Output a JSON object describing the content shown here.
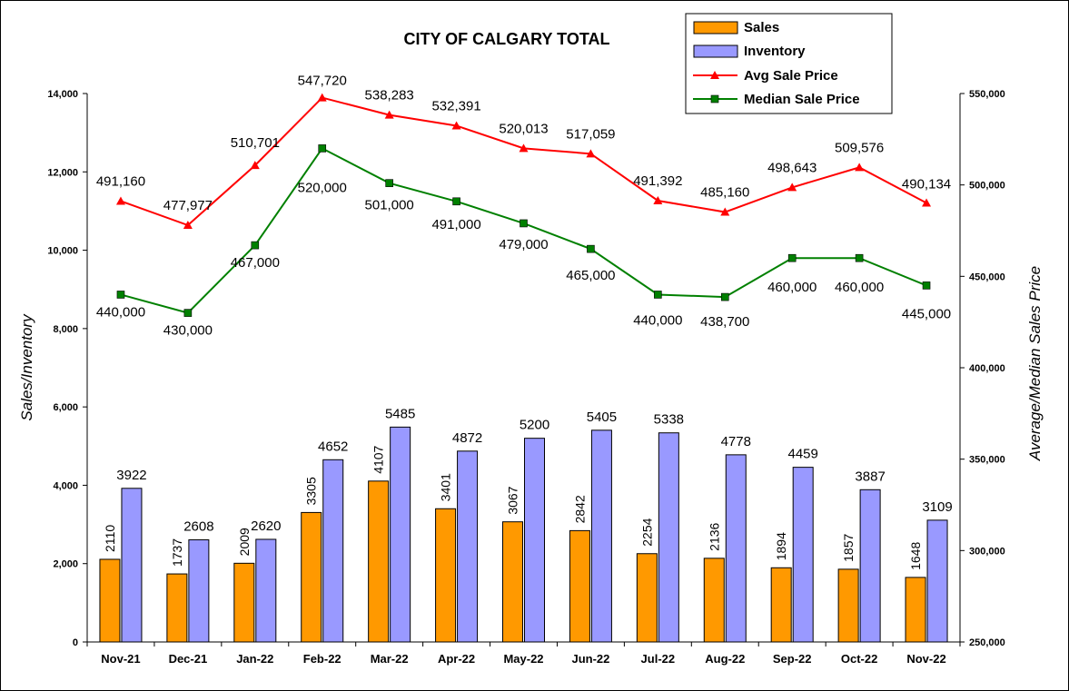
{
  "chart_data": {
    "type": "bar",
    "title": "CITY OF CALGARY TOTAL",
    "categories": [
      "Nov-21",
      "Dec-21",
      "Jan-22",
      "Feb-22",
      "Mar-22",
      "Apr-22",
      "May-22",
      "Jun-22",
      "Jul-22",
      "Aug-22",
      "Sep-22",
      "Oct-22",
      "Nov-22"
    ],
    "ylabel": "Sales/Inventory",
    "y2label": "Average/Median Sales Price",
    "ylim": [
      0,
      14000
    ],
    "y2lim": [
      250000,
      550000
    ],
    "yticks": [
      "0",
      "2,000",
      "4,000",
      "6,000",
      "8,000",
      "10,000",
      "12,000",
      "14,000"
    ],
    "y2ticks": [
      "250,000",
      "300,000",
      "350,000",
      "400,000",
      "450,000",
      "500,000",
      "550,000"
    ],
    "legend_position": "top-right",
    "series": [
      {
        "name": "Sales",
        "type": "bar",
        "axis": "left",
        "color": "#FF9900",
        "values": [
          2110,
          1737,
          2009,
          3305,
          4107,
          3401,
          3067,
          2842,
          2254,
          2136,
          1894,
          1857,
          1648
        ],
        "labels": [
          "2110",
          "1737",
          "2009",
          "3305",
          "4107",
          "3401",
          "3067",
          "2842",
          "2254",
          "2136",
          "1894",
          "1857",
          "1648"
        ]
      },
      {
        "name": "Inventory",
        "type": "bar",
        "axis": "left",
        "color": "#9999FF",
        "values": [
          3922,
          2608,
          2620,
          4652,
          5485,
          4872,
          5200,
          5405,
          5338,
          4778,
          4459,
          3887,
          3109
        ],
        "labels": [
          "3922",
          "2608",
          "2620",
          "4652",
          "5485",
          "4872",
          "5200",
          "5405",
          "5338",
          "4778",
          "4459",
          "3887",
          "3109"
        ]
      },
      {
        "name": "Avg Sale Price",
        "type": "line",
        "axis": "right",
        "color": "#FF0000",
        "marker": "triangle",
        "values": [
          491160,
          477977,
          510701,
          547720,
          538283,
          532391,
          520013,
          517059,
          491392,
          485160,
          498643,
          509576,
          490134
        ],
        "labels": [
          "491,160",
          "477,977",
          "510,701",
          "547,720",
          "538,283",
          "532,391",
          "520,013",
          "517,059",
          "491,392",
          "485,160",
          "498,643",
          "509,576",
          "490,134"
        ]
      },
      {
        "name": "Median Sale Price",
        "type": "line",
        "axis": "right",
        "color": "#008000",
        "marker": "square",
        "values": [
          440000,
          430000,
          467000,
          520000,
          501000,
          491000,
          479000,
          465000,
          440000,
          438700,
          460000,
          460000,
          445000
        ],
        "labels": [
          "440,000",
          "430,000",
          "467,000",
          "520,000",
          "501,000",
          "491,000",
          "479,000",
          "465,000",
          "440,000",
          "438,700",
          "460,000",
          "460,000",
          "445,000"
        ]
      }
    ]
  }
}
